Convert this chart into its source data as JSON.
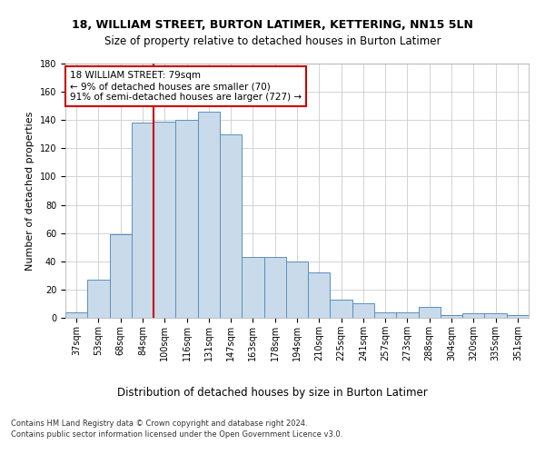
{
  "title1": "18, WILLIAM STREET, BURTON LATIMER, KETTERING, NN15 5LN",
  "title2": "Size of property relative to detached houses in Burton Latimer",
  "xlabel": "Distribution of detached houses by size in Burton Latimer",
  "ylabel": "Number of detached properties",
  "categories": [
    "37sqm",
    "53sqm",
    "68sqm",
    "84sqm",
    "100sqm",
    "116sqm",
    "131sqm",
    "147sqm",
    "163sqm",
    "178sqm",
    "194sqm",
    "210sqm",
    "225sqm",
    "241sqm",
    "257sqm",
    "273sqm",
    "288sqm",
    "304sqm",
    "320sqm",
    "335sqm",
    "351sqm"
  ],
  "values": [
    4,
    27,
    59,
    138,
    139,
    140,
    146,
    130,
    43,
    43,
    40,
    32,
    13,
    10,
    4,
    4,
    8,
    2,
    3,
    3,
    2
  ],
  "bar_color": "#c9daea",
  "bar_edge_color": "#5a8fc0",
  "vline_color": "#cc0000",
  "vline_pos": 3.5,
  "annotation_text": "18 WILLIAM STREET: 79sqm\n← 9% of detached houses are smaller (70)\n91% of semi-detached houses are larger (727) →",
  "annotation_box_color": "#ffffff",
  "annotation_box_edge": "#cc0000",
  "ylim": [
    0,
    180
  ],
  "yticks": [
    0,
    20,
    40,
    60,
    80,
    100,
    120,
    140,
    160,
    180
  ],
  "background_color": "#ffffff",
  "grid_color": "#cccccc",
  "footer": "Contains HM Land Registry data © Crown copyright and database right 2024.\nContains public sector information licensed under the Open Government Licence v3.0.",
  "title1_fontsize": 9,
  "title2_fontsize": 8.5,
  "xlabel_fontsize": 8.5,
  "ylabel_fontsize": 8,
  "tick_fontsize": 7,
  "annotation_fontsize": 7.5,
  "footer_fontsize": 6
}
